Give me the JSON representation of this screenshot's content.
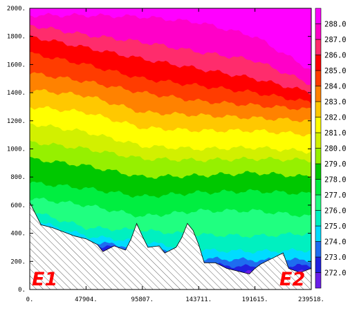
{
  "chart_data": {
    "type": "contour",
    "title": "",
    "xlabel": "",
    "ylabel": "",
    "xlim": [
      0,
      239518
    ],
    "ylim": [
      0,
      2000
    ],
    "x_ticks": [
      {
        "value": 0,
        "label": "0."
      },
      {
        "value": 47904,
        "label": "47904."
      },
      {
        "value": 95807,
        "label": "95807."
      },
      {
        "value": 143711,
        "label": "143711."
      },
      {
        "value": 191615,
        "label": "191615."
      },
      {
        "value": 239518,
        "label": "239518."
      }
    ],
    "y_ticks": [
      {
        "value": 0,
        "label": "0."
      },
      {
        "value": 200,
        "label": "200."
      },
      {
        "value": 400,
        "label": "400."
      },
      {
        "value": 600,
        "label": "600."
      },
      {
        "value": 800,
        "label": "800."
      },
      {
        "value": 1000,
        "label": "1000."
      },
      {
        "value": 1200,
        "label": "1200."
      },
      {
        "value": 1400,
        "label": "1400."
      },
      {
        "value": 1600,
        "label": "1600."
      },
      {
        "value": 1800,
        "label": "1800."
      },
      {
        "value": 2000,
        "label": "2000."
      }
    ],
    "contour_levels": [
      "272.0",
      "273.0",
      "274.0",
      "275.0",
      "276.0",
      "277.0",
      "278.0",
      "279.0",
      "280.0",
      "281.0",
      "282.0",
      "283.0",
      "284.0",
      "285.0",
      "286.0",
      "287.0",
      "288.0"
    ],
    "colorbar_colors": [
      "#6a1ee8",
      "#2020e0",
      "#1e6cf0",
      "#00dcff",
      "#00f0c0",
      "#20ff80",
      "#00ee40",
      "#00c800",
      "#96f000",
      "#d2f000",
      "#ffff00",
      "#ffc800",
      "#ff8200",
      "#ff3c00",
      "#ff0000",
      "#ff2c6c",
      "#ff00c8",
      "#ff00ff"
    ],
    "annotations": [
      "E1",
      "E2"
    ],
    "terrain_fill": "hatched",
    "grid": false,
    "legend": "right-colorbar",
    "terrain_profile": [
      [
        0,
        620
      ],
      [
        9580,
        460
      ],
      [
        19160,
        440
      ],
      [
        28740,
        410
      ],
      [
        38320,
        380
      ],
      [
        47904,
        360
      ],
      [
        57480,
        320
      ],
      [
        62270,
        270
      ],
      [
        71850,
        310
      ],
      [
        81430,
        280
      ],
      [
        86220,
        360
      ],
      [
        91010,
        470
      ],
      [
        95807,
        380
      ],
      [
        100600,
        300
      ],
      [
        110180,
        310
      ],
      [
        114970,
        260
      ],
      [
        124550,
        300
      ],
      [
        129340,
        370
      ],
      [
        134130,
        470
      ],
      [
        138920,
        420
      ],
      [
        143711,
        320
      ],
      [
        148500,
        190
      ],
      [
        158080,
        190
      ],
      [
        167660,
        150
      ],
      [
        177240,
        130
      ],
      [
        186820,
        110
      ],
      [
        191615,
        150
      ],
      [
        196400,
        180
      ],
      [
        206000,
        220
      ],
      [
        215560,
        260
      ],
      [
        220350,
        150
      ],
      [
        230000,
        120
      ],
      [
        239518,
        150
      ]
    ],
    "band_lower_bounds": [
      {
        "level": "288.0",
        "heights": [
          [
            0,
            1950
          ],
          [
            47904,
            1950
          ],
          [
            95807,
            1940
          ],
          [
            143711,
            1900
          ],
          [
            191615,
            1800
          ],
          [
            239518,
            1560
          ]
        ]
      },
      {
        "level": "287.0",
        "heights": [
          [
            0,
            1880
          ],
          [
            47904,
            1810
          ],
          [
            95807,
            1760
          ],
          [
            143711,
            1690
          ],
          [
            191615,
            1630
          ],
          [
            239518,
            1460
          ]
        ]
      },
      {
        "level": "286.0",
        "heights": [
          [
            0,
            1800
          ],
          [
            47904,
            1720
          ],
          [
            95807,
            1640
          ],
          [
            143711,
            1570
          ],
          [
            191615,
            1500
          ],
          [
            239518,
            1400
          ]
        ]
      },
      {
        "level": "285.0",
        "heights": [
          [
            0,
            1680
          ],
          [
            47904,
            1600
          ],
          [
            95807,
            1500
          ],
          [
            143711,
            1450
          ],
          [
            191615,
            1400
          ],
          [
            239518,
            1330
          ]
        ]
      },
      {
        "level": "284.0",
        "heights": [
          [
            0,
            1540
          ],
          [
            47904,
            1480
          ],
          [
            95807,
            1400
          ],
          [
            143711,
            1340
          ],
          [
            191615,
            1310
          ],
          [
            239518,
            1280
          ]
        ]
      },
      {
        "level": "283.0",
        "heights": [
          [
            0,
            1420
          ],
          [
            47904,
            1380
          ],
          [
            95807,
            1260
          ],
          [
            143711,
            1240
          ],
          [
            191615,
            1220
          ],
          [
            239518,
            1200
          ]
        ]
      },
      {
        "level": "282.0",
        "heights": [
          [
            0,
            1300
          ],
          [
            47904,
            1260
          ],
          [
            95807,
            1150
          ],
          [
            143711,
            1130
          ],
          [
            191615,
            1130
          ],
          [
            239518,
            1100
          ]
        ]
      },
      {
        "level": "281.0",
        "heights": [
          [
            0,
            1180
          ],
          [
            47904,
            1120
          ],
          [
            95807,
            1020
          ],
          [
            143711,
            1000
          ],
          [
            191615,
            1010
          ],
          [
            239518,
            980
          ]
        ]
      },
      {
        "level": "280.0",
        "heights": [
          [
            0,
            1050
          ],
          [
            47904,
            1000
          ],
          [
            95807,
            930
          ],
          [
            143711,
            920
          ],
          [
            191615,
            930
          ],
          [
            239518,
            920
          ]
        ]
      },
      {
        "level": "279.0",
        "heights": [
          [
            0,
            930
          ],
          [
            47904,
            880
          ],
          [
            95807,
            800
          ],
          [
            143711,
            810
          ],
          [
            191615,
            830
          ],
          [
            239518,
            800
          ]
        ]
      },
      {
        "level": "278.0",
        "heights": [
          [
            0,
            760
          ],
          [
            47904,
            720
          ],
          [
            95807,
            660
          ],
          [
            143711,
            690
          ],
          [
            191615,
            700
          ],
          [
            239518,
            680
          ]
        ]
      },
      {
        "level": "277.0",
        "heights": [
          [
            0,
            650
          ],
          [
            47904,
            600
          ],
          [
            95807,
            520
          ],
          [
            143711,
            560
          ],
          [
            191615,
            560
          ],
          [
            239518,
            520
          ]
        ]
      },
      {
        "level": "276.0",
        "heights": [
          [
            0,
            560
          ],
          [
            47904,
            440
          ],
          [
            95807,
            420
          ],
          [
            143711,
            390
          ],
          [
            191615,
            380
          ],
          [
            239518,
            400
          ]
        ]
      },
      {
        "level": "275.0",
        "heights": [
          [
            0,
            500
          ],
          [
            47904,
            380
          ],
          [
            95807,
            340
          ],
          [
            143711,
            280
          ],
          [
            191615,
            270
          ],
          [
            239518,
            280
          ]
        ]
      },
      {
        "level": "274.0",
        "heights": [
          [
            0,
            480
          ],
          [
            47904,
            340
          ],
          [
            95807,
            300
          ],
          [
            143711,
            220
          ],
          [
            191615,
            210
          ],
          [
            239518,
            210
          ]
        ]
      },
      {
        "level": "273.0",
        "heights": [
          [
            0,
            460
          ],
          [
            47904,
            320
          ],
          [
            95807,
            280
          ],
          [
            143711,
            180
          ],
          [
            191615,
            160
          ],
          [
            239518,
            170
          ]
        ]
      },
      {
        "level": "272.0",
        "heights": [
          [
            0,
            440
          ],
          [
            47904,
            300
          ],
          [
            95807,
            260
          ],
          [
            143711,
            150
          ],
          [
            191615,
            120
          ],
          [
            239518,
            130
          ]
        ]
      }
    ]
  }
}
